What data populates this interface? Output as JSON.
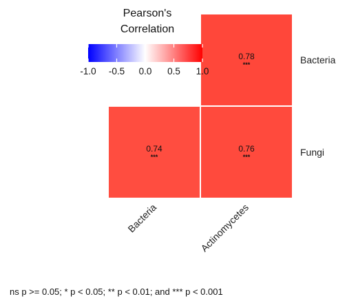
{
  "chart_data": {
    "type": "heatmap",
    "x_categories": [
      "Bacteria",
      "Actinomycetes"
    ],
    "y_categories": [
      "Bacteria",
      "Fungi"
    ],
    "cells": [
      {
        "x": "Actinomycetes",
        "y": "Bacteria",
        "value": 0.78,
        "sig": "***"
      },
      {
        "x": "Bacteria",
        "y": "Fungi",
        "value": 0.74,
        "sig": "***"
      },
      {
        "x": "Actinomycetes",
        "y": "Fungi",
        "value": 0.76,
        "sig": "***"
      }
    ],
    "legend": {
      "title_lines": [
        "Pearson's",
        "Correlation"
      ],
      "range": [
        -1.0,
        1.0
      ],
      "ticks": [
        -1.0,
        -0.5,
        0.0,
        0.5,
        1.0
      ],
      "tick_labels": [
        "-1.0",
        "-0.5",
        "0.0",
        "0.5",
        "1.0"
      ],
      "colors": {
        "low": "#0000ff",
        "mid": "#ffffff",
        "high": "#ff0000"
      }
    },
    "caption": "ns p >= 0.05; * p < 0.05; ** p < 0.01; and *** p < 0.001"
  }
}
